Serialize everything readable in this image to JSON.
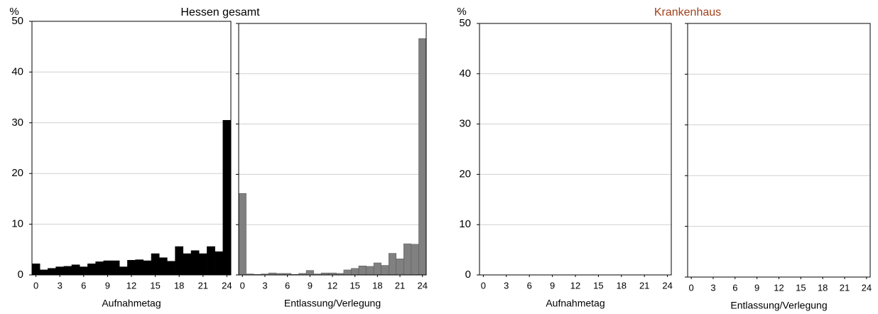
{
  "chart_data": [
    {
      "type": "bar",
      "title": "Hessen gesamt",
      "ylabel": "%",
      "xlabel": "Aufnahmetag",
      "color": "#000000",
      "edgecolor": "#000000",
      "x": [
        0,
        1,
        2,
        3,
        4,
        5,
        6,
        7,
        8,
        9,
        10,
        11,
        12,
        13,
        14,
        15,
        16,
        17,
        18,
        19,
        20,
        21,
        22,
        23,
        24
      ],
      "values": [
        2.2,
        1.0,
        1.3,
        1.6,
        1.7,
        2.0,
        1.6,
        2.2,
        2.6,
        2.8,
        2.8,
        1.6,
        2.9,
        3.0,
        2.8,
        4.2,
        3.4,
        2.7,
        5.6,
        4.2,
        4.8,
        4.2,
        5.6,
        4.6,
        30.5
      ],
      "xlim": [
        -0.5,
        24.5
      ],
      "xticks": [
        0,
        3,
        6,
        9,
        12,
        15,
        18,
        21,
        24
      ],
      "ylim": [
        0,
        50
      ],
      "yticks": [
        0,
        10,
        20,
        30,
        40,
        50
      ],
      "grid": true,
      "ytick_labels": true
    },
    {
      "type": "bar",
      "xlabel": "Entlassung/Verlegung",
      "color": "#808080",
      "edgecolor": "#555555",
      "x": [
        0,
        1,
        2,
        3,
        4,
        5,
        6,
        7,
        8,
        9,
        10,
        11,
        12,
        13,
        14,
        15,
        16,
        17,
        18,
        19,
        20,
        21,
        22,
        23,
        24
      ],
      "values": [
        16.2,
        0.2,
        0.1,
        0.2,
        0.4,
        0.3,
        0.3,
        0.1,
        0.3,
        0.9,
        0.2,
        0.4,
        0.4,
        0.3,
        1.0,
        1.3,
        1.8,
        1.7,
        2.4,
        1.9,
        4.3,
        3.2,
        6.2,
        6.1,
        47.0
      ],
      "xlim": [
        -0.5,
        24.5
      ],
      "xticks": [
        0,
        3,
        6,
        9,
        12,
        15,
        18,
        21,
        24
      ],
      "ylim": [
        0,
        50
      ],
      "yticks": [
        0,
        10,
        20,
        30,
        40,
        50
      ],
      "grid": true,
      "ytick_labels": false
    },
    {
      "type": "bar",
      "title": "Krankenhaus",
      "title_color": "#a0401a",
      "ylabel": "%",
      "xlabel": "Aufnahmetag",
      "xlim": [
        -0.5,
        24.5
      ],
      "xticks": [
        0,
        3,
        6,
        9,
        12,
        15,
        18,
        21,
        24
      ],
      "ylim": [
        0,
        50
      ],
      "yticks": [
        0,
        10,
        20,
        30,
        40,
        50
      ],
      "grid": true,
      "ytick_labels": true
    },
    {
      "type": "bar",
      "xlabel": "Entlassung/Verlegung",
      "xlim": [
        -0.5,
        24.5
      ],
      "xticks": [
        0,
        3,
        6,
        9,
        12,
        15,
        18,
        21,
        24
      ],
      "ylim": [
        0,
        50
      ],
      "yticks": [
        0,
        10,
        20,
        30,
        40,
        50
      ],
      "grid": true,
      "ytick_labels": false
    }
  ]
}
